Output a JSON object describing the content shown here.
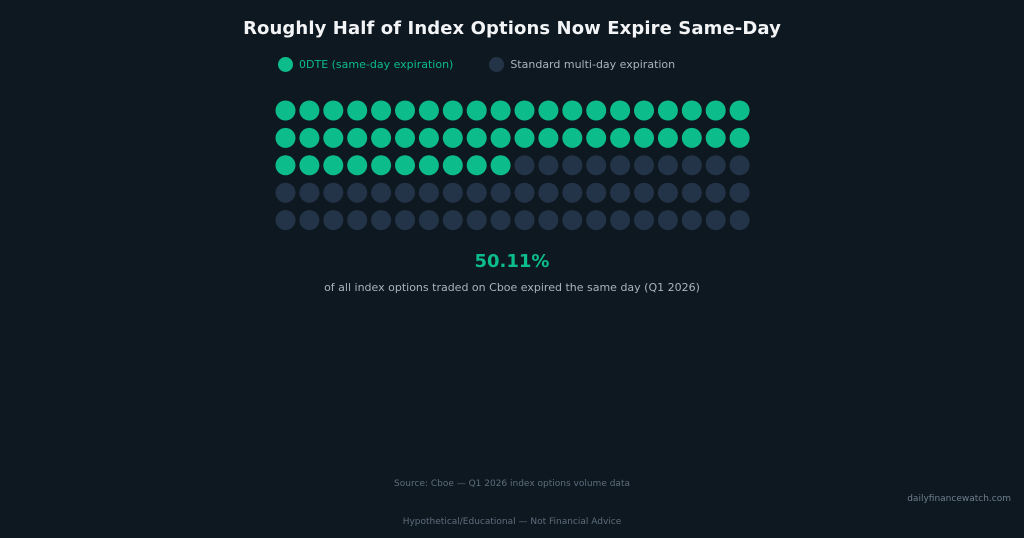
{
  "title": "Roughly Half of Index Options Now Expire Same-Day",
  "colors": {
    "background": "#0e1821",
    "zero_dte": "#0cbc8b",
    "standard": "#243448",
    "title": "#f2f4f6",
    "legend_standard_text": "#a7b3bf"
  },
  "legend": {
    "zero_dte_label": "0DTE (same-day expiration)",
    "standard_label": "Standard multi-day expiration"
  },
  "headline": {
    "value": "50.11%",
    "caption": "of all index options traded on Cboe expired the same day (Q1 2026)"
  },
  "chart_data": {
    "type": "waffle",
    "rows": 5,
    "columns": 20,
    "total_units": 100,
    "series": [
      {
        "name": "0DTE (same-day expiration)",
        "units": 50,
        "percent": 50.11,
        "color": "#0cbc8b"
      },
      {
        "name": "Standard multi-day expiration",
        "units": 50,
        "percent": 49.89,
        "color": "#243448"
      }
    ],
    "fill_order": "row-major"
  },
  "footer": {
    "source": "Source: Cboe — Q1 2026 index options volume data",
    "watermark": "dailyfinancewatch.com",
    "disclaimer": "Hypothetical/Educational — Not Financial Advice"
  }
}
